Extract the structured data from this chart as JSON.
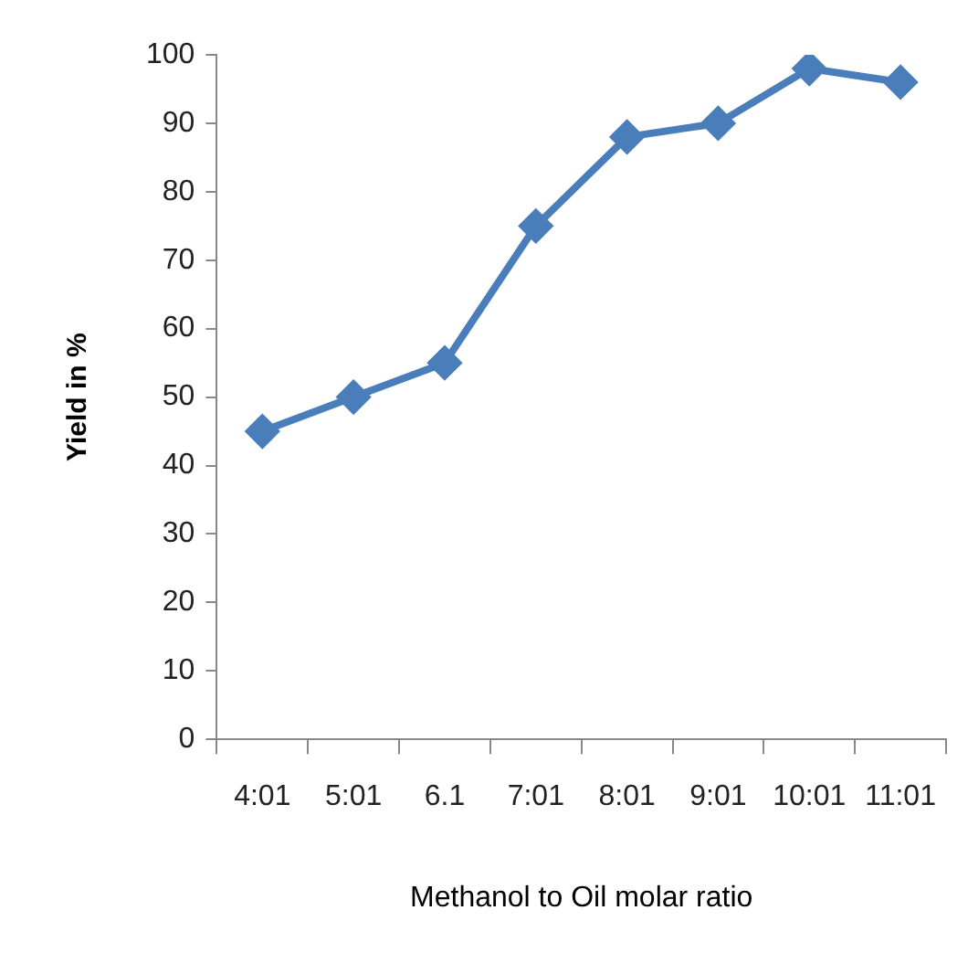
{
  "chart_data": {
    "type": "line",
    "xlabel": "Methanol to Oil molar ratio",
    "ylabel": "Yield in %",
    "categories": [
      "4:01",
      "5:01",
      "6.1",
      "7:01",
      "8:01",
      "9:01",
      "10:01",
      "11:01"
    ],
    "series": [
      {
        "color": "#4a7ebb",
        "values": [
          45,
          50,
          55,
          75,
          88,
          90,
          98,
          96
        ]
      }
    ],
    "ylim": [
      0,
      100
    ],
    "yticks": [
      0,
      10,
      20,
      30,
      40,
      50,
      60,
      70,
      80,
      90,
      100
    ],
    "grid": false,
    "legend": false,
    "marker": "diamond",
    "line_style": "solid"
  }
}
